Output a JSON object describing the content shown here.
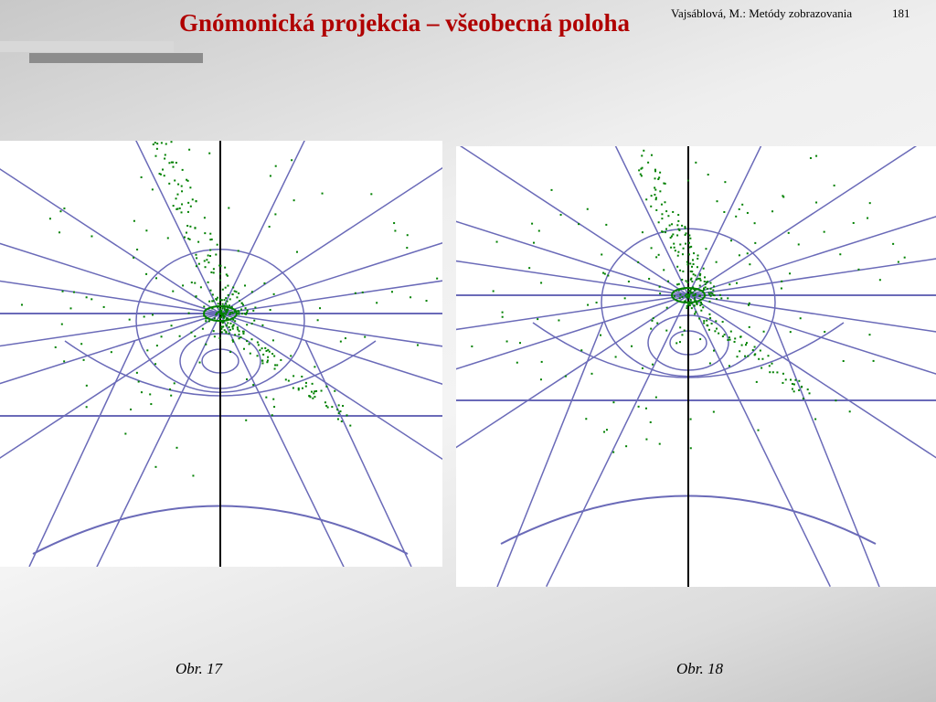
{
  "header": {
    "title": "Gnómonická projekcia – všeobecná poloha",
    "author_line": "Vajsáblová, M.: Metódy zobrazovania",
    "page": "181"
  },
  "figures": [
    {
      "caption": "Obr. 17"
    },
    {
      "caption": "Obr. 18"
    }
  ]
}
